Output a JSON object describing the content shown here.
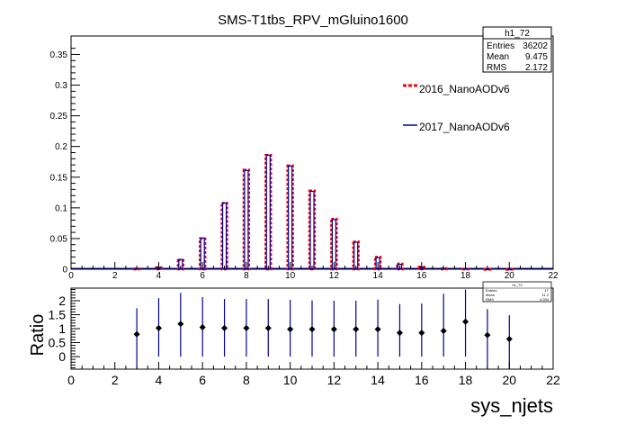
{
  "title": "SMS-T1tbs_RPV_mGluino1600",
  "stats_main": {
    "name": "h1_72",
    "rows": [
      {
        "label": "Entries",
        "value": "36202"
      },
      {
        "label": "Mean",
        "value": "9.475"
      },
      {
        "label": "RMS",
        "value": "2.172"
      }
    ]
  },
  "stats_ratio": {
    "name": "h1_72",
    "rows": [
      {
        "label": "Entries",
        "value": "17"
      },
      {
        "label": "Mean",
        "value": "11.2"
      },
      {
        "label": "RMS",
        "value": "4.034"
      }
    ]
  },
  "legend": [
    {
      "name": "2016_NanoAODv6",
      "color": "#ff0000",
      "style": "dashed"
    },
    {
      "name": "2017_NanoAODv6",
      "color": "#000099",
      "style": "solid"
    }
  ],
  "chart_data": [
    {
      "type": "bar",
      "title": "SMS-T1tbs_RPV_mGluino1600",
      "xlim": [
        0,
        22
      ],
      "ylim": [
        0,
        0.38
      ],
      "x_ticks": [
        "0",
        "2",
        "4",
        "6",
        "8",
        "10",
        "12",
        "14",
        "16",
        "18",
        "20",
        "22"
      ],
      "y_ticks": [
        "0",
        "0.05",
        "0.1",
        "0.15",
        "0.2",
        "0.25",
        "0.3",
        "0.35"
      ],
      "categories": [
        3,
        4,
        5,
        6,
        7,
        8,
        9,
        10,
        11,
        12,
        13,
        14,
        15,
        16,
        17,
        18,
        19,
        20
      ],
      "series": [
        {
          "name": "2016_NanoAODv6",
          "color": "#ff0000",
          "values": [
            0.001,
            0.003,
            0.015,
            0.05,
            0.108,
            0.162,
            0.186,
            0.169,
            0.128,
            0.082,
            0.045,
            0.02,
            0.009,
            0.004,
            0.0015,
            0.0006,
            0.0002,
            0.0001
          ]
        },
        {
          "name": "2017_NanoAODv6",
          "color": "#000099",
          "values": [
            0.0008,
            0.003,
            0.016,
            0.051,
            0.108,
            0.161,
            0.186,
            0.168,
            0.127,
            0.081,
            0.044,
            0.019,
            0.008,
            0.0035,
            0.0014,
            0.0007,
            0.00015,
            7e-05
          ]
        }
      ]
    },
    {
      "type": "scatter",
      "xlabel": "sys_njets",
      "ylabel": "Ratio",
      "xlim": [
        0,
        22
      ],
      "ylim": [
        -0.45,
        2.45
      ],
      "x_ticks": [
        "0",
        "2",
        "4",
        "6",
        "8",
        "10",
        "12",
        "14",
        "16",
        "18",
        "20",
        "22"
      ],
      "y_ticks": [
        "0",
        "0.5",
        "1",
        "1.5",
        "2"
      ],
      "x": [
        3,
        4,
        5,
        6,
        7,
        8,
        9,
        10,
        11,
        12,
        13,
        14,
        15,
        16,
        17,
        18,
        19,
        20
      ],
      "y": [
        0.8,
        1.02,
        1.17,
        1.05,
        1.02,
        1.02,
        1.02,
        0.98,
        0.98,
        0.98,
        0.98,
        0.98,
        0.85,
        0.85,
        0.92,
        1.25,
        0.77,
        0.63
      ],
      "err_low": [
        1.25,
        1.02,
        1.17,
        1.05,
        1.02,
        1.02,
        1.02,
        0.98,
        0.98,
        0.98,
        0.98,
        0.98,
        0.85,
        0.85,
        0.92,
        1.25,
        1.2,
        1.1
      ],
      "err_high": [
        0.93,
        1.07,
        1.11,
        1.08,
        1.04,
        1.04,
        1.04,
        1.05,
        1.03,
        1.02,
        1.02,
        1.06,
        1.03,
        1.05,
        1.33,
        1.15,
        0.93,
        0.85
      ]
    }
  ]
}
